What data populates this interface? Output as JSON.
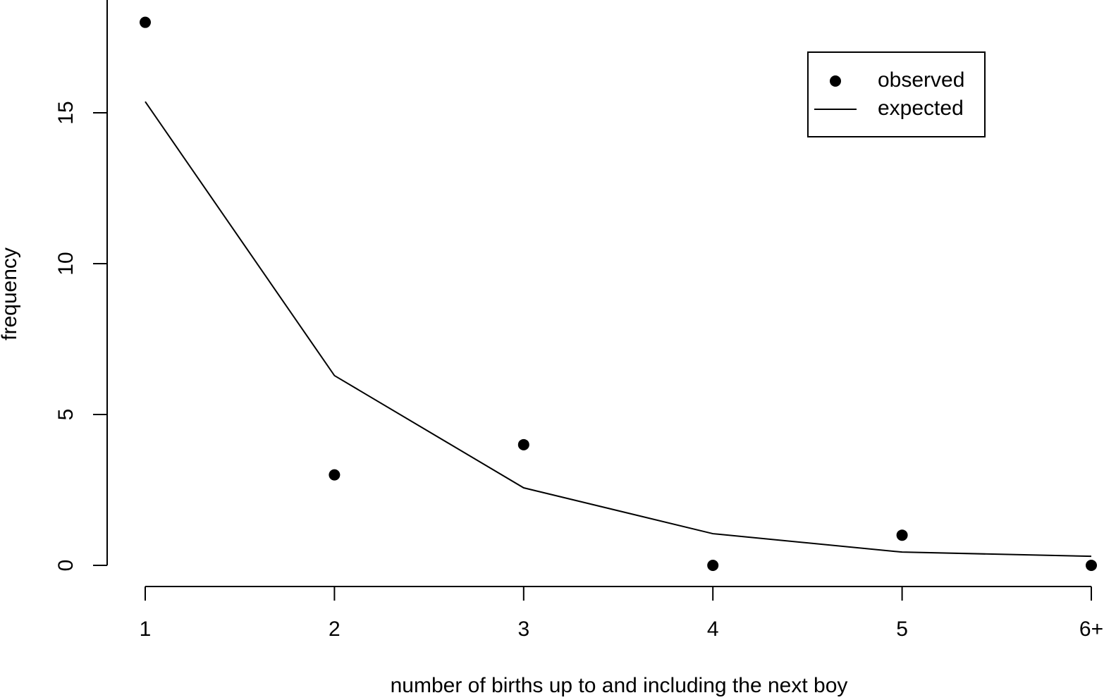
{
  "chart_data": {
    "type": "line",
    "x_label": "number of births up to and including the next boy",
    "y_label": "frequency",
    "categories": [
      "1",
      "2",
      "3",
      "4",
      "5",
      "6+"
    ],
    "series": [
      {
        "name": "observed",
        "type": "scatter",
        "color": "#000000",
        "values": [
          18,
          3,
          4,
          0,
          1,
          0
        ]
      },
      {
        "name": "expected",
        "type": "line",
        "color": "#000000",
        "values": [
          15.37,
          6.29,
          2.57,
          1.05,
          0.44,
          0.3
        ]
      }
    ],
    "ylim": [
      0,
      18.74
    ],
    "yticks": [
      0,
      5,
      10,
      15
    ],
    "grid": false,
    "legend": "topright"
  }
}
